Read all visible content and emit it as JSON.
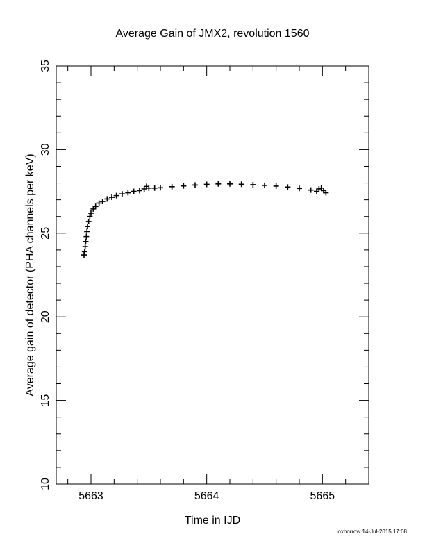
{
  "chart_data": {
    "type": "scatter",
    "title": "Average Gain of JMX2, revolution 1560",
    "xlabel": "Time in IJD",
    "ylabel": "Average gain of detector (PHA channels per keV)",
    "footer": "oxborrow 14-Jul-2015 17:08",
    "marker": "+",
    "color": "#000000",
    "x": [
      5662.94,
      5662.945,
      5662.95,
      5662.955,
      5662.96,
      5662.965,
      5662.97,
      5662.98,
      5662.99,
      5663.0,
      5663.02,
      5663.04,
      5663.07,
      5663.1,
      5663.14,
      5663.18,
      5663.22,
      5663.27,
      5663.32,
      5663.37,
      5663.42,
      5663.46,
      5663.48,
      5663.5,
      5663.55,
      5663.6,
      5663.7,
      5663.8,
      5663.9,
      5664.0,
      5664.1,
      5664.2,
      5664.3,
      5664.4,
      5664.5,
      5664.6,
      5664.7,
      5664.8,
      5664.9,
      5664.95,
      5664.97,
      5664.99,
      5665.01,
      5665.03
    ],
    "y": [
      23.7,
      23.9,
      24.2,
      24.5,
      24.8,
      25.1,
      25.4,
      25.7,
      26.0,
      26.2,
      26.45,
      26.6,
      26.8,
      26.9,
      27.05,
      27.15,
      27.25,
      27.35,
      27.42,
      27.5,
      27.55,
      27.65,
      27.8,
      27.7,
      27.7,
      27.72,
      27.78,
      27.83,
      27.88,
      27.92,
      27.95,
      27.95,
      27.93,
      27.9,
      27.86,
      27.82,
      27.76,
      27.68,
      27.58,
      27.5,
      27.65,
      27.7,
      27.55,
      27.42
    ],
    "xlim": [
      5662.7,
      5665.4
    ],
    "ylim": [
      10,
      35
    ],
    "xticks": [
      5663,
      5664,
      5665
    ],
    "yticks": [
      10,
      15,
      20,
      25,
      30,
      35
    ],
    "xminorticks": [
      5662.8,
      5663.2,
      5663.4,
      5663.6,
      5663.8,
      5664.2,
      5664.4,
      5664.6,
      5664.8,
      5665.2
    ],
    "yminorticks": [
      11,
      12,
      13,
      14,
      16,
      17,
      18,
      19,
      21,
      22,
      23,
      24,
      26,
      27,
      28,
      29,
      31,
      32,
      33,
      34
    ]
  }
}
